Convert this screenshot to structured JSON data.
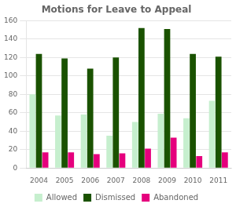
{
  "chart_data": {
    "type": "bar",
    "title": "Motions for Leave to Appeal",
    "categories": [
      "2004",
      "2005",
      "2006",
      "2007",
      "2008",
      "2009",
      "2010",
      "2011"
    ],
    "series": [
      {
        "name": "Allowed",
        "color": "#c6efce",
        "values": [
          80,
          57,
          58,
          35,
          50,
          59,
          54,
          73
        ]
      },
      {
        "name": "Dismissed",
        "color": "#1a5200",
        "values": [
          124,
          119,
          108,
          120,
          152,
          151,
          124,
          121
        ]
      },
      {
        "name": "Abandoned",
        "color": "#e5007d",
        "values": [
          17,
          17,
          15,
          16,
          21,
          33,
          13,
          17
        ]
      }
    ],
    "ylim": [
      0,
      160
    ],
    "yticks": [
      0,
      20,
      40,
      60,
      80,
      100,
      120,
      140,
      160
    ],
    "grid": true,
    "legend": "bottom"
  }
}
